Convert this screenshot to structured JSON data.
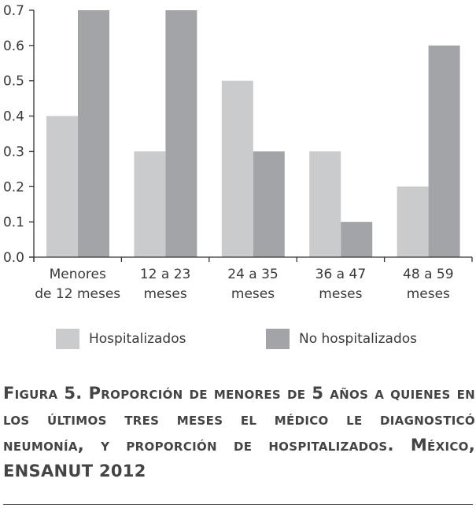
{
  "chart_data": {
    "type": "bar",
    "categories": [
      [
        "Menores",
        "de 12 meses"
      ],
      [
        "12 a 23",
        "meses"
      ],
      [
        "24 a 35",
        "meses"
      ],
      [
        "36 a 47",
        "meses"
      ],
      [
        "48 a 59",
        "meses"
      ]
    ],
    "series": [
      {
        "name": "Hospitalizados",
        "color": "#c9cbcd",
        "values": [
          0.4,
          0.3,
          0.5,
          0.3,
          0.2
        ]
      },
      {
        "name": "No hospitalizados",
        "color": "#a3a4a7",
        "values": [
          0.7,
          0.7,
          0.3,
          0.1,
          0.6
        ]
      }
    ],
    "yticks": [
      "0.0",
      "0.1",
      "0.2",
      "0.3",
      "0.4",
      "0.5",
      "0.6",
      "0.7"
    ],
    "ylim": [
      0,
      0.7
    ],
    "xlabel": "",
    "ylabel": "",
    "legend_position": "bottom",
    "title": ""
  },
  "caption": {
    "text": "Figura 5. Proporción de menores de 5 años a quienes en los últimos tres meses el médico le diagnosticó neumonía, y proporción de hospitalizados. México, ENSANUT 2012"
  }
}
